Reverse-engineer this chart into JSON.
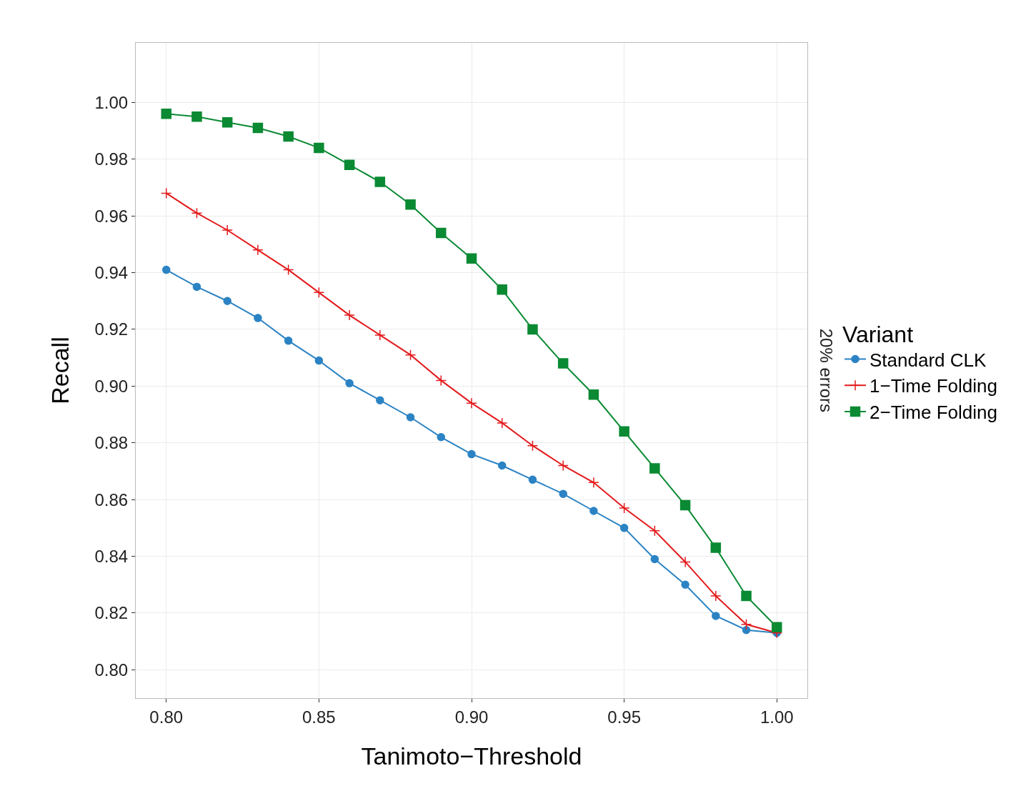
{
  "chart_data": {
    "type": "line",
    "xlabel": "Tanimoto−Threshold",
    "ylabel": "Recall",
    "legend_title": "Variant",
    "annotations": [
      "20% errors"
    ],
    "x": [
      0.8,
      0.81,
      0.82,
      0.83,
      0.84,
      0.85,
      0.86,
      0.87,
      0.88,
      0.89,
      0.9,
      0.91,
      0.92,
      0.93,
      0.94,
      0.95,
      0.96,
      0.97,
      0.98,
      0.99,
      1.0
    ],
    "series": [
      {
        "name": "Standard CLK",
        "color": "#2b83c4",
        "marker": "circle",
        "values": [
          0.941,
          0.935,
          0.93,
          0.924,
          0.916,
          0.909,
          0.901,
          0.895,
          0.889,
          0.882,
          0.876,
          0.872,
          0.867,
          0.862,
          0.856,
          0.85,
          0.839,
          0.83,
          0.819,
          0.814,
          0.813
        ]
      },
      {
        "name": "1−Time Folding",
        "color": "#e31a1c",
        "marker": "cross",
        "values": [
          0.968,
          0.961,
          0.955,
          0.948,
          0.941,
          0.933,
          0.925,
          0.918,
          0.911,
          0.902,
          0.894,
          0.887,
          0.879,
          0.872,
          0.866,
          0.857,
          0.849,
          0.838,
          0.826,
          0.816,
          0.813
        ]
      },
      {
        "name": "2−Time Folding",
        "color": "#0a8a33",
        "marker": "square",
        "values": [
          0.996,
          0.995,
          0.993,
          0.991,
          0.988,
          0.984,
          0.978,
          0.972,
          0.964,
          0.954,
          0.945,
          0.934,
          0.92,
          0.908,
          0.897,
          0.884,
          0.871,
          0.858,
          0.843,
          0.826,
          0.815
        ]
      }
    ],
    "xlim": [
      0.79,
      1.01
    ],
    "ylim": [
      0.79,
      1.021
    ],
    "xticks": [
      {
        "value": 0.8,
        "label": "0.80"
      },
      {
        "value": 0.85,
        "label": "0.85"
      },
      {
        "value": 0.9,
        "label": "0.90"
      },
      {
        "value": 0.95,
        "label": "0.95"
      },
      {
        "value": 1.0,
        "label": "1.00"
      }
    ],
    "yticks": [
      {
        "value": 0.8,
        "label": "0.80"
      },
      {
        "value": 0.82,
        "label": "0.82"
      },
      {
        "value": 0.84,
        "label": "0.84"
      },
      {
        "value": 0.86,
        "label": "0.86"
      },
      {
        "value": 0.88,
        "label": "0.88"
      },
      {
        "value": 0.9,
        "label": "0.90"
      },
      {
        "value": 0.92,
        "label": "0.92"
      },
      {
        "value": 0.94,
        "label": "0.94"
      },
      {
        "value": 0.96,
        "label": "0.96"
      },
      {
        "value": 0.98,
        "label": "0.98"
      },
      {
        "value": 1.0,
        "label": "1.00"
      }
    ],
    "grid": true,
    "legend": "right",
    "line_style": "solid"
  }
}
